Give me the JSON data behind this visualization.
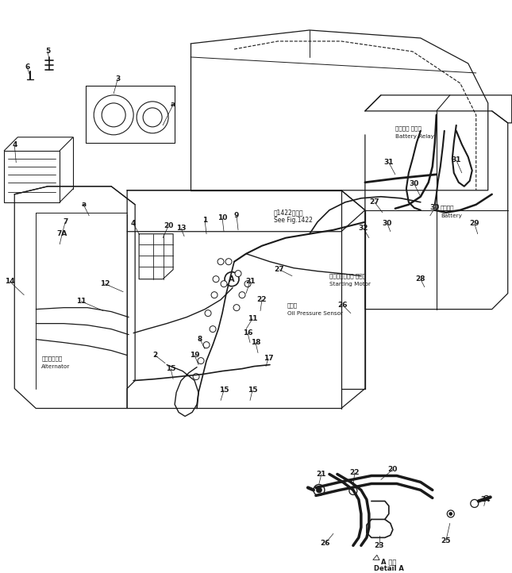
{
  "bg_color": "#ffffff",
  "line_color": "#1a1a1a",
  "figsize": [
    6.45,
    7.22
  ],
  "dpi": 100,
  "labels": {
    "Battery_Relay_jp": "バッテリ リレー",
    "Battery_Relay_en": "Battery Relay",
    "Battery_jp": "バッテリ",
    "Battery_en": "Battery",
    "Starting_Motor_jp": "スターティング モータ",
    "Starting_Motor_en": "Starting Motor",
    "Oil_Pressure_jp": "油圧計",
    "Oil_Pressure_en": "Oil Pressure Sensor",
    "Alternator_jp": "オルタネータ",
    "Alternator_en": "Alternator",
    "See_Fig_jp": "図1422図参照",
    "See_Fig_en": "See Fig.1422",
    "Detail_A_jp": "A 詳細",
    "Detail_A_en": "Detail A"
  }
}
